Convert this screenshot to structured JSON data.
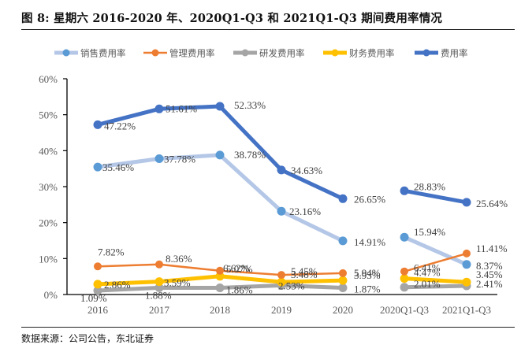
{
  "figure": {
    "title": "图 8: 星期六 2016-2020 年、2020Q1-Q3 和 2021Q1-Q3 期间费用率情况",
    "source": "数据来源：公司公告，东北证券"
  },
  "chart_data": {
    "type": "line",
    "title": "图 8: 星期六 2016-2020 年、2020Q1-Q3 和 2021Q1-Q3 期间费用率情况",
    "xlabel": "",
    "ylabel": "",
    "categories": [
      "2016",
      "2017",
      "2018",
      "2019",
      "2020",
      "2020Q1-Q3",
      "2021Q1-Q3"
    ],
    "segments": [
      [
        0,
        4
      ],
      [
        5,
        6
      ]
    ],
    "ylim": [
      0,
      60
    ],
    "yticks": [
      0,
      10,
      20,
      30,
      40,
      50,
      60
    ],
    "ytick_labels": [
      "0%",
      "10%",
      "20%",
      "30%",
      "40%",
      "50%",
      "60%"
    ],
    "grid": false,
    "legend_position": "top",
    "series": [
      {
        "name": "销售费用率",
        "color": "#b4c7e7",
        "marker_color": "#5b9bd5",
        "width": "thick",
        "values": [
          35.46,
          37.78,
          38.78,
          23.16,
          14.91,
          15.94,
          8.37
        ],
        "labels": [
          "35.46%",
          "37.78%",
          "38.78%",
          "23.16%",
          "14.91%",
          "15.94%",
          "8.37%"
        ]
      },
      {
        "name": "管理费用率",
        "color": "#ed7d31",
        "marker_color": "#ed7d31",
        "width": "thin",
        "values": [
          7.82,
          8.36,
          6.62,
          5.45,
          5.94,
          6.41,
          11.41
        ],
        "labels": [
          "7.82%",
          "8.36%",
          "6.62%",
          "5.45%",
          "5.94%",
          "6.41%",
          "11.41%"
        ]
      },
      {
        "name": "研发费用率",
        "color": "#a5a5a5",
        "marker_color": "#a5a5a5",
        "width": "thick",
        "values": [
          1.09,
          1.88,
          1.86,
          2.53,
          1.87,
          2.01,
          2.41
        ],
        "labels": [
          "1.09%",
          "1.88%",
          "1.86%",
          "2.53%",
          "1.87%",
          "2.01%",
          "2.41%"
        ]
      },
      {
        "name": "财务费用率",
        "color": "#ffc000",
        "marker_color": "#ffc000",
        "width": "thick",
        "values": [
          2.86,
          3.59,
          5.07,
          3.48,
          3.93,
          4.47,
          3.45
        ],
        "labels": [
          "2.86%",
          "3.59%",
          "5.07%",
          "3.48%",
          "3.93%",
          "4.47%",
          "3.45%"
        ]
      },
      {
        "name": "费用率",
        "color": "#4472c4",
        "marker_color": "#4472c4",
        "width": "thick",
        "values": [
          47.22,
          51.61,
          52.33,
          34.63,
          26.65,
          28.83,
          25.64
        ],
        "labels": [
          "47.22%",
          "51.61%",
          "52.33%",
          "34.63%",
          "26.65%",
          "28.83%",
          "25.64%"
        ]
      }
    ]
  }
}
